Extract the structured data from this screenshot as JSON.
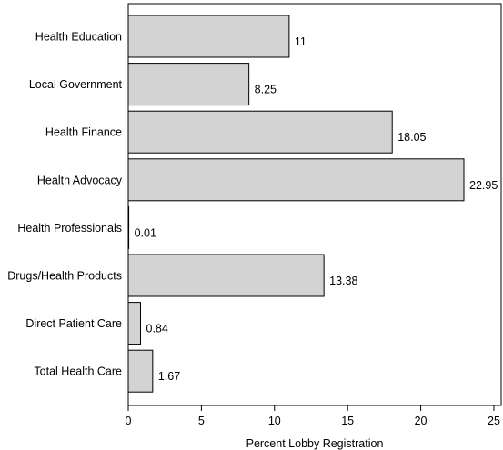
{
  "chart_data": {
    "type": "bar",
    "orientation": "horizontal",
    "categories": [
      "Health Education",
      "Local Government",
      "Health Finance",
      "Health Advocacy",
      "Health Professionals",
      "Drugs/Health Products",
      "Direct Patient Care",
      "Total Health Care"
    ],
    "values": [
      11,
      8.25,
      18.05,
      22.95,
      0.01,
      13.38,
      0.84,
      1.67
    ],
    "data_labels": [
      "11",
      "8.25",
      "18.05",
      "22.95",
      "0.01",
      "13.38",
      "0.84",
      "1.67"
    ],
    "xlabel": "Percent Lobby Registration",
    "ylabel": "",
    "xlim": [
      0,
      25.5
    ],
    "xticks": [
      0,
      5,
      10,
      15,
      20,
      25
    ],
    "grid": false,
    "legend": "none",
    "colors": {
      "bar_fill": "#d3d3d3",
      "bar_stroke": "#000000",
      "frame": "#000000",
      "text": "#000000"
    }
  }
}
